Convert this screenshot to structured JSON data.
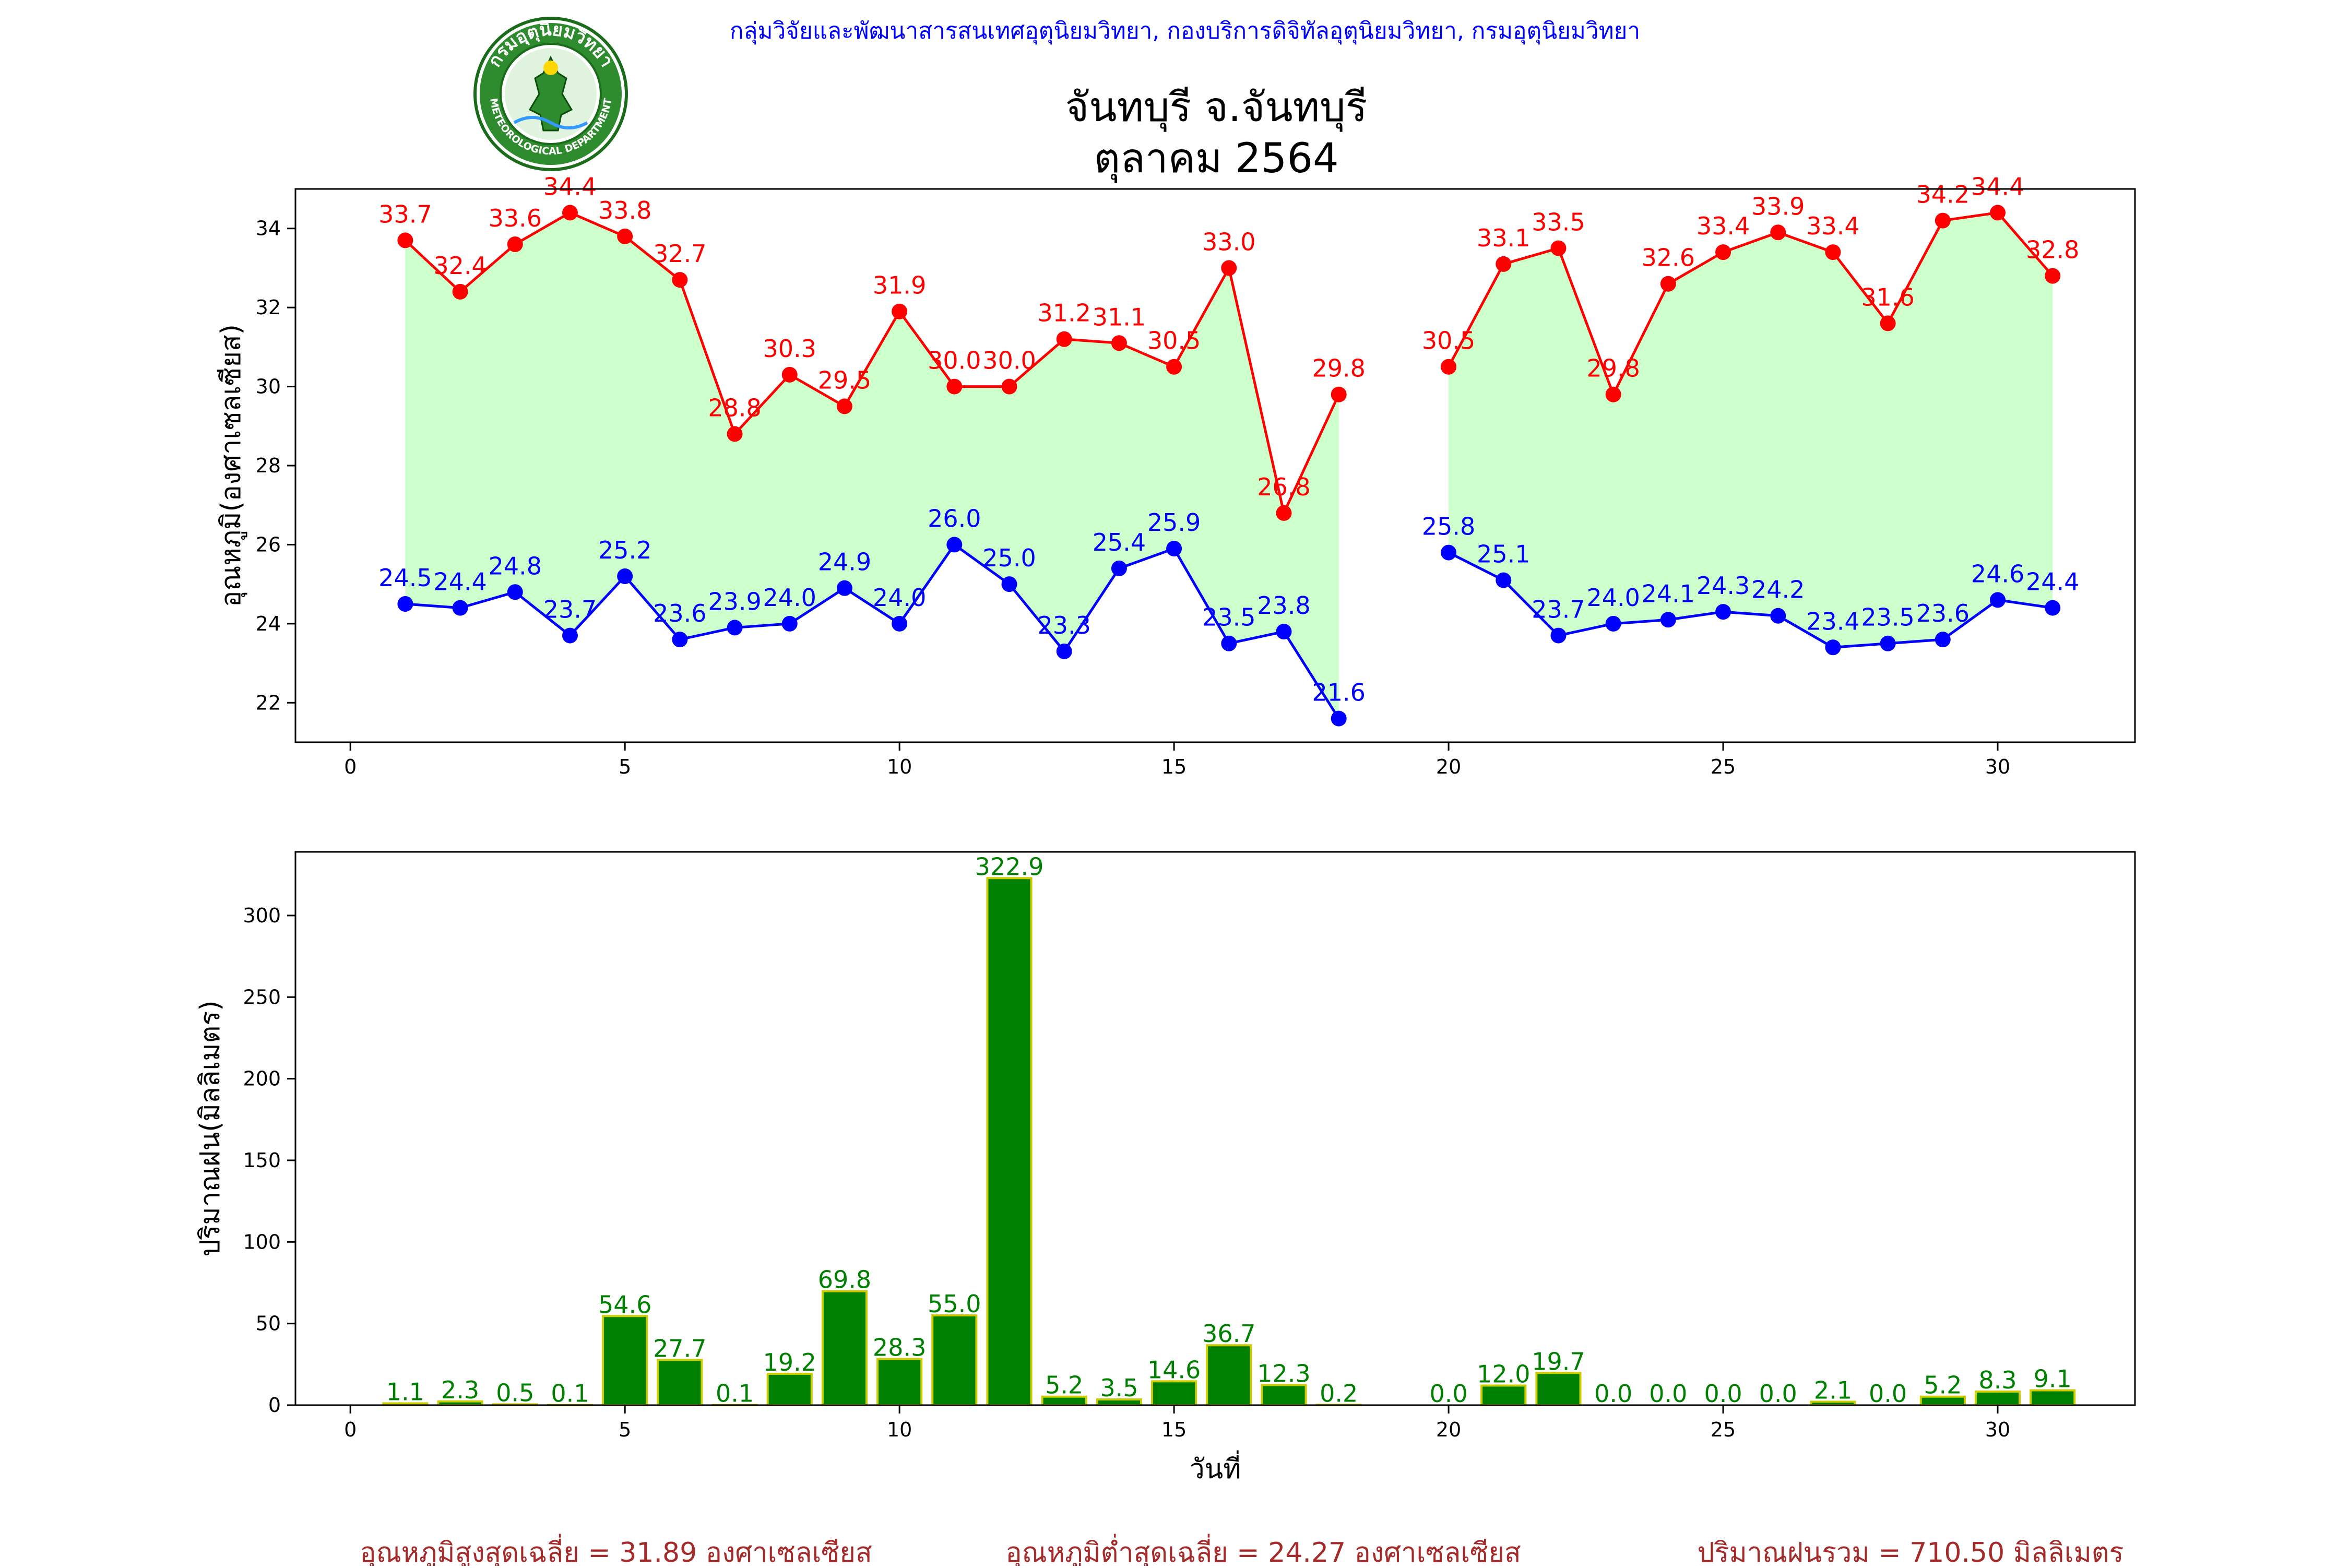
{
  "header": {
    "agency": "กลุ่มวิจัยและพัฒนาสารสนเทศอุตุนิยมวิทยา, กองบริการดิจิทัลอุตุนิยมวิทยา, กรมอุตุนิยมวิทยา",
    "title": "จันทบุรี จ.จันทบุรี",
    "subtitle": "ตุลาคม 2564",
    "logo_top_text": "กรมอุตุนิยมวิทยา",
    "logo_bottom_text": "METEOROLOGICAL DEPARTMENT"
  },
  "colors": {
    "agency": "#0000ff",
    "tmax": "#ff0000",
    "tmin": "#0000ff",
    "fill": "#ccffcc",
    "bar": "#008000",
    "bar_edge": "#cccc00",
    "bar_label": "#008000",
    "summary": "#a52a2a"
  },
  "summary": {
    "avg_max": "อุณหภูมิสูงสุดเฉลี่ย = 31.89 องศาเซลเซียส",
    "avg_min": "อุณหภูมิต่ำสุดเฉลี่ย = 24.27 องศาเซลเซียส",
    "rain_total": "ปริมาณฝนรวม = 710.50 มิลลิเมตร"
  },
  "chart_data": [
    {
      "type": "line",
      "ylabel": "อุณหภูมิ(องศาเซลเซียส)",
      "xlim": [
        -1,
        32.5
      ],
      "ylim": [
        21,
        35
      ],
      "xticks": [
        0,
        5,
        10,
        15,
        20,
        25,
        30
      ],
      "yticks": [
        22,
        24,
        26,
        28,
        30,
        32,
        34
      ],
      "fill_between": true,
      "series": [
        {
          "key": "tmax",
          "points": [
            [
              1,
              33.7
            ],
            [
              2,
              32.4
            ],
            [
              3,
              33.6
            ],
            [
              4,
              34.4
            ],
            [
              5,
              33.8
            ],
            [
              6,
              32.7
            ],
            [
              7,
              28.8
            ],
            [
              8,
              30.3
            ],
            [
              9,
              29.5
            ],
            [
              10,
              31.9
            ],
            [
              11,
              30.0
            ],
            [
              12,
              30.0
            ],
            [
              13,
              31.2
            ],
            [
              14,
              31.1
            ],
            [
              15,
              30.5
            ],
            [
              16,
              33.0
            ],
            [
              17,
              26.8
            ],
            [
              18,
              29.8
            ],
            [
              20,
              30.5
            ],
            [
              21,
              33.1
            ],
            [
              22,
              33.5
            ],
            [
              23,
              29.8
            ],
            [
              24,
              32.6
            ],
            [
              25,
              33.4
            ],
            [
              26,
              33.9
            ],
            [
              27,
              33.4
            ],
            [
              28,
              31.6
            ],
            [
              29,
              34.2
            ],
            [
              30,
              34.4
            ],
            [
              31,
              32.8
            ]
          ]
        },
        {
          "key": "tmin",
          "points": [
            [
              1,
              24.5
            ],
            [
              2,
              24.4
            ],
            [
              3,
              24.8
            ],
            [
              4,
              23.7
            ],
            [
              5,
              25.2
            ],
            [
              6,
              23.6
            ],
            [
              7,
              23.9
            ],
            [
              8,
              24.0
            ],
            [
              9,
              24.9
            ],
            [
              10,
              24.0
            ],
            [
              11,
              26.0
            ],
            [
              12,
              25.0
            ],
            [
              13,
              23.3
            ],
            [
              14,
              25.4
            ],
            [
              15,
              25.9
            ],
            [
              16,
              23.5
            ],
            [
              17,
              23.8
            ],
            [
              18,
              21.6
            ],
            [
              20,
              25.8
            ],
            [
              21,
              25.1
            ],
            [
              22,
              23.7
            ],
            [
              23,
              24.0
            ],
            [
              24,
              24.1
            ],
            [
              25,
              24.3
            ],
            [
              26,
              24.2
            ],
            [
              27,
              23.4
            ],
            [
              28,
              23.5
            ],
            [
              29,
              23.6
            ],
            [
              30,
              24.6
            ],
            [
              31,
              24.4
            ]
          ]
        }
      ]
    },
    {
      "type": "bar",
      "xlabel": "วันที่",
      "ylabel": "ปริมาณฝน(มิลลิเมตร)",
      "xlim": [
        -1,
        32.5
      ],
      "ylim": [
        0,
        339
      ],
      "xticks": [
        0,
        5,
        10,
        15,
        20,
        25,
        30
      ],
      "yticks": [
        0,
        50,
        100,
        150,
        200,
        250,
        300
      ],
      "bars": [
        [
          1,
          1.1
        ],
        [
          2,
          2.3
        ],
        [
          3,
          0.5
        ],
        [
          4,
          0.1
        ],
        [
          5,
          54.6
        ],
        [
          6,
          27.7
        ],
        [
          7,
          0.1
        ],
        [
          8,
          19.2
        ],
        [
          9,
          69.8
        ],
        [
          10,
          28.3
        ],
        [
          11,
          55.0
        ],
        [
          12,
          322.9
        ],
        [
          13,
          5.2
        ],
        [
          14,
          3.5
        ],
        [
          15,
          14.6
        ],
        [
          16,
          36.7
        ],
        [
          17,
          12.3
        ],
        [
          18,
          0.2
        ],
        [
          20,
          0.0
        ],
        [
          21,
          12.0
        ],
        [
          22,
          19.7
        ],
        [
          23,
          0.0
        ],
        [
          24,
          0.0
        ],
        [
          25,
          0.0
        ],
        [
          26,
          0.0
        ],
        [
          27,
          2.1
        ],
        [
          28,
          0.0
        ],
        [
          29,
          5.2
        ],
        [
          30,
          8.3
        ],
        [
          31,
          9.1
        ]
      ]
    }
  ]
}
